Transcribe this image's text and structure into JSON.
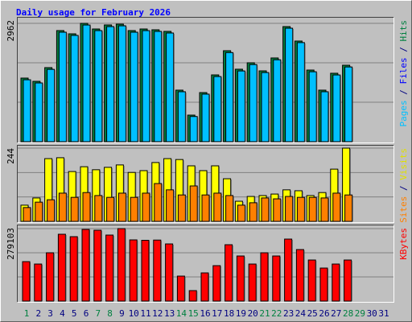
{
  "chart_data": {
    "type": "bar",
    "title": "Daily usage for February 2026",
    "title_color": "#0000ff",
    "categories": [
      "1",
      "2",
      "3",
      "4",
      "5",
      "6",
      "7",
      "8",
      "9",
      "10",
      "11",
      "12",
      "13",
      "14",
      "15",
      "16",
      "17",
      "18",
      "19",
      "20",
      "21",
      "22",
      "23",
      "24",
      "25",
      "26",
      "27",
      "28",
      "29",
      "30",
      "31"
    ],
    "category_colors": [
      "#008040",
      "#000080",
      "#000080",
      "#000080",
      "#000080",
      "#000080",
      "#008040",
      "#008040",
      "#000080",
      "#000080",
      "#000080",
      "#000080",
      "#000080",
      "#008040",
      "#008040",
      "#000080",
      "#000080",
      "#000080",
      "#000080",
      "#000080",
      "#008040",
      "#008040",
      "#000080",
      "#000080",
      "#000080",
      "#000080",
      "#000080",
      "#008040",
      "#008040",
      "#000080",
      "#000080"
    ],
    "panels": [
      {
        "ylim": [
          0,
          2962
        ],
        "yticks": [
          2962
        ],
        "legend": [
          {
            "text": "Pages",
            "color": "#00c0ff"
          },
          {
            "text": " / ",
            "color": "#000080"
          },
          {
            "text": "Files",
            "color": "#0000ff"
          },
          {
            "text": " / ",
            "color": "#000080"
          },
          {
            "text": "Hits",
            "color": "#008040"
          }
        ],
        "series": [
          {
            "color": "#008040",
            "values": [
              1592,
              1511,
              1854,
              2781,
              2700,
              2962,
              2821,
              2922,
              2942,
              2781,
              2821,
              2801,
              2761,
              1290,
              665,
              1229,
              1672,
              2277,
              1814,
              1975,
              1773,
              2096,
              2881,
              2519,
              1793,
              1290,
              1713,
              1914,
              null,
              null,
              null
            ]
          },
          {
            "color": "#00c0ff",
            "values": [
              1550,
              1470,
              1810,
              2740,
              2660,
              2920,
              2780,
              2880,
              2900,
              2740,
              2780,
              2760,
              2720,
              1250,
              630,
              1190,
              1630,
              2230,
              1770,
              1930,
              1730,
              2050,
              2840,
              2480,
              1750,
              1250,
              1670,
              1870,
              null,
              null,
              null
            ]
          }
        ]
      },
      {
        "ylim": [
          0,
          244
        ],
        "yticks": [
          244
        ],
        "legend": [
          {
            "text": "Sites",
            "color": "#ff8000"
          },
          {
            "text": " / ",
            "color": "#000080"
          },
          {
            "text": "Visits",
            "color": "#e0e000"
          }
        ],
        "series": [
          {
            "color": "#ffff00",
            "values": [
              54,
              78,
              209,
              212,
              166,
              182,
              172,
              180,
              188,
              163,
              169,
              196,
              209,
              206,
              185,
              169,
              185,
              142,
              67,
              83,
              86,
              91,
              105,
              102,
              86,
              96,
              174,
              244,
              null,
              null,
              null
            ]
          },
          {
            "color": "#ff8000",
            "values": [
              46,
              64,
              72,
              94,
              80,
              96,
              86,
              80,
              94,
              80,
              94,
              126,
              105,
              88,
              118,
              88,
              94,
              86,
              54,
              62,
              78,
              75,
              83,
              80,
              80,
              78,
              94,
              88,
              null,
              null,
              null
            ]
          }
        ]
      },
      {
        "ylim": [
          0,
          279103
        ],
        "yticks": [
          279103
        ],
        "legend": [
          {
            "text": "KBytes",
            "color": "#ff0000"
          }
        ],
        "series": [
          {
            "color": "#ff0000",
            "values": [
              151949,
              142646,
              186060,
              257383,
              248080,
              275989,
              272888,
              254282,
              279103,
              235676,
              234100,
              235000,
              220171,
              96131,
              40313,
              108535,
              136444,
              217070,
              173656,
              142646,
              186060,
              173656,
              238777,
              198464,
              158151,
              127141,
              142646,
              158151,
              null,
              null,
              null
            ]
          }
        ]
      }
    ]
  }
}
